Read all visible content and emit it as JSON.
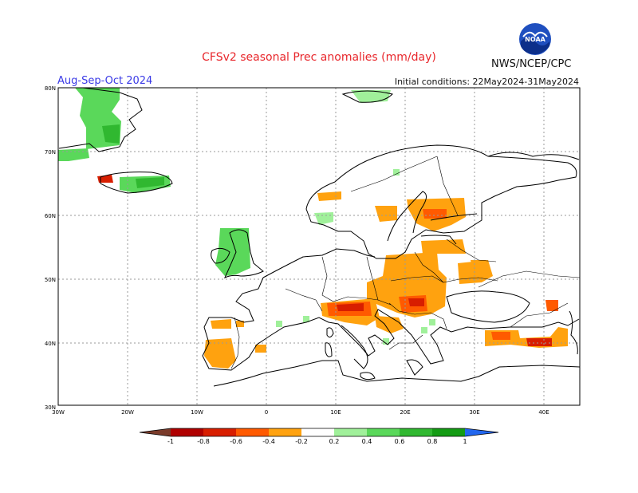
{
  "header": {
    "title": "CFSv2 seasonal Prec anomalies (mm/day)",
    "period": "Aug-Sep-Oct 2024",
    "initial_conditions": "Initial conditions: 22May2024-31May2024",
    "agency": "NWS/NCEP/CPC"
  },
  "map": {
    "lat_labels": [
      "80N",
      "70N",
      "60N",
      "50N",
      "40N",
      "30N"
    ],
    "lon_labels": [
      "30W",
      "20W",
      "10W",
      "0",
      "10E",
      "20E",
      "30E",
      "40E"
    ]
  },
  "legend": {
    "labels": [
      "-1",
      "-0.8",
      "-0.6",
      "-0.4",
      "-0.2",
      "0.2",
      "0.4",
      "0.6",
      "0.8",
      "1"
    ],
    "colors": {
      "below_min": "#7a3b2a",
      "bin_-1_-0.8": "#b00000",
      "bin_-0.8_-0.6": "#d81e00",
      "bin_-0.6_-0.4": "#ff5a00",
      "bin_-0.4_-0.2": "#ffa20f",
      "bin_-0.2_0.2": "#ffffff",
      "bin_0.2_0.4": "#a0f09a",
      "bin_0.4_0.6": "#5ad85a",
      "bin_0.6_0.8": "#30b830",
      "bin_0.8_1": "#149c14",
      "above_max": "#2266ee"
    }
  }
}
